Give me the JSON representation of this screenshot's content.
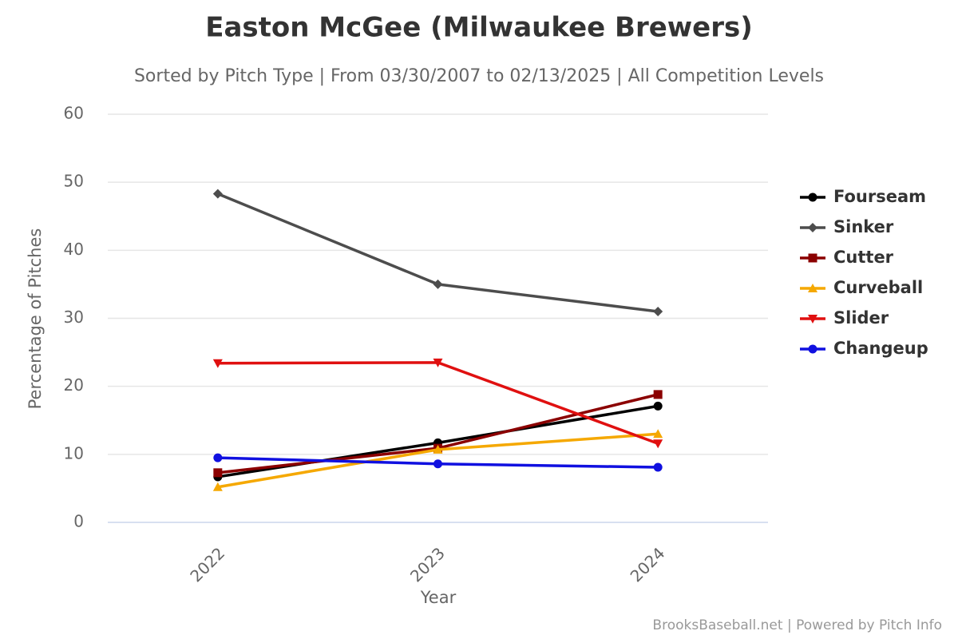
{
  "chart_data": {
    "type": "line",
    "title": "Easton McGee (Milwaukee Brewers)",
    "subtitle": "Sorted by Pitch Type | From 03/30/2007 to 02/13/2025 | All Competition Levels",
    "x_label": "Year",
    "y_label": "Percentage of Pitches",
    "credit": "BrooksBaseball.net | Powered by Pitch Info",
    "categories": [
      "2022",
      "2023",
      "2024"
    ],
    "ylim": [
      0,
      60
    ],
    "yticks": [
      0,
      10,
      20,
      30,
      40,
      50,
      60
    ],
    "grid": true,
    "legend": "right",
    "series": [
      {
        "name": "Fourseam",
        "color": "#000000",
        "marker": "circle",
        "values": [
          6.7,
          11.7,
          17.1
        ]
      },
      {
        "name": "Sinker",
        "color": "#4d4d4d",
        "marker": "diamond",
        "values": [
          48.3,
          35.0,
          31.0
        ]
      },
      {
        "name": "Cutter",
        "color": "#8b0000",
        "marker": "square",
        "values": [
          7.3,
          10.9,
          18.8
        ]
      },
      {
        "name": "Curveball",
        "color": "#f5a800",
        "marker": "triangle",
        "values": [
          5.2,
          10.7,
          13.0
        ]
      },
      {
        "name": "Slider",
        "color": "#e01010",
        "marker": "triangle-down",
        "values": [
          23.4,
          23.5,
          11.6
        ]
      },
      {
        "name": "Changeup",
        "color": "#1010e0",
        "marker": "circle",
        "values": [
          9.5,
          8.6,
          8.1
        ]
      }
    ]
  }
}
